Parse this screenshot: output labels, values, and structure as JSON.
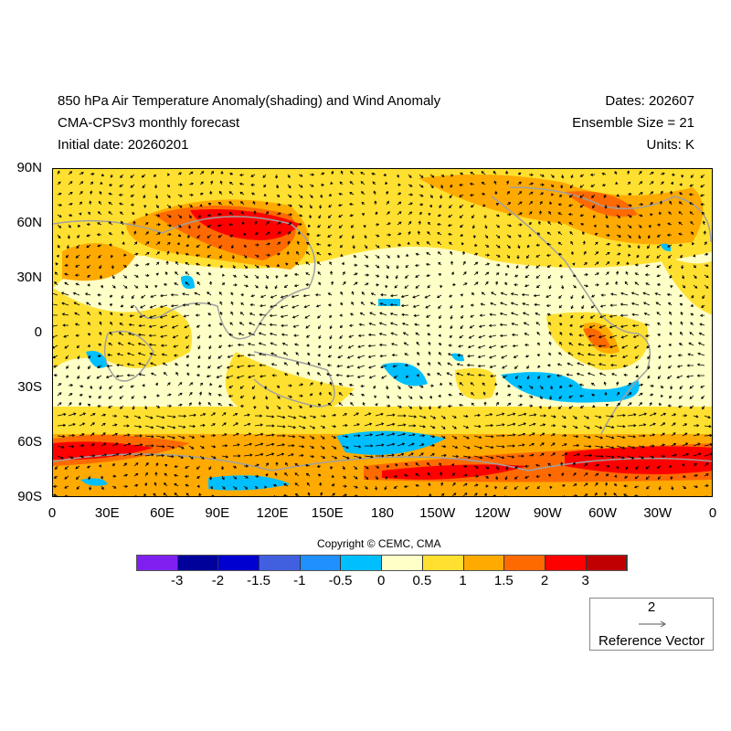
{
  "header": {
    "title": "850 hPa Air Temperature Anomaly(shading) and Wind Anomaly",
    "subtitle": "CMA-CPSv3 monthly forecast",
    "initial_date": "Initial date: 20260201",
    "dates": "Dates: 202607",
    "ensemble": "Ensemble Size = 21",
    "units": "Units: K"
  },
  "axes": {
    "lat_labels": [
      "90N",
      "60N",
      "30N",
      "0",
      "30S",
      "60S",
      "90S"
    ],
    "lon_labels": [
      "0",
      "30E",
      "60E",
      "90E",
      "120E",
      "150E",
      "180",
      "150W",
      "120W",
      "90W",
      "60W",
      "30W",
      "0"
    ]
  },
  "colorbar": {
    "colors": [
      "#8020f0",
      "#00009a",
      "#0000d0",
      "#4060e0",
      "#2090ff",
      "#00bfff",
      "#ffffc8",
      "#ffe030",
      "#ffaa00",
      "#ff6a00",
      "#ff0000",
      "#c00000"
    ],
    "labels": [
      "-3",
      "-2",
      "-1.5",
      "-1",
      "-0.5",
      "0",
      "0.5",
      "1",
      "1.5",
      "2",
      "3"
    ]
  },
  "copyright": "Copyright © CEMC, CMA",
  "reference": {
    "value": "2",
    "label": "Reference Vector"
  }
}
